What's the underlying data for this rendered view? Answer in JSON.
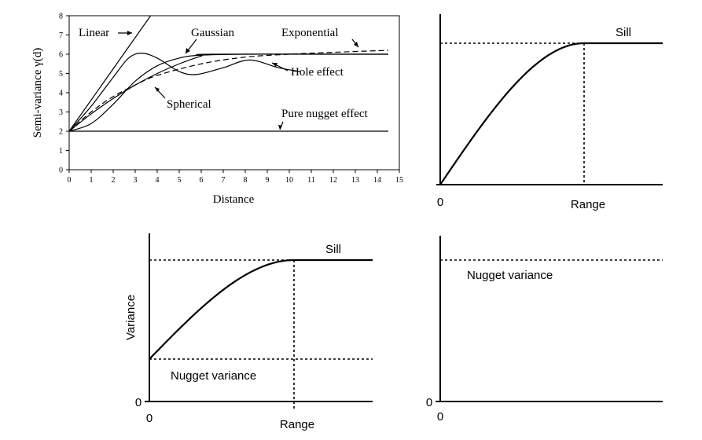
{
  "chart_data": [
    {
      "type": "line",
      "title": "",
      "xlabel": "Distance",
      "ylabel": "Semi-variance γ(d)",
      "xlim": [
        0,
        15
      ],
      "ylim": [
        0,
        8
      ],
      "xticks": [
        "0",
        "1",
        "2",
        "3",
        "4",
        "5",
        "6",
        "7",
        "8",
        "9",
        "10",
        "11",
        "12",
        "13",
        "14",
        "15"
      ],
      "yticks": [
        "0",
        "1",
        "2",
        "3",
        "4",
        "5",
        "6",
        "7",
        "8"
      ],
      "series": [
        {
          "name": "Linear",
          "x": [
            0,
            3.7
          ],
          "y": [
            2,
            8
          ]
        },
        {
          "name": "Gaussian",
          "x": [
            0,
            1,
            2,
            3,
            4,
            5,
            6,
            8,
            10,
            14.5
          ],
          "y": [
            2,
            2.4,
            3.4,
            4.6,
            5.4,
            5.8,
            5.95,
            6.0,
            6.0,
            6.0
          ]
        },
        {
          "name": "Exponential",
          "x": [
            0,
            1,
            2,
            3,
            4,
            6,
            8,
            10,
            12,
            14.5
          ],
          "y": [
            2,
            3.0,
            3.8,
            4.4,
            4.9,
            5.5,
            5.85,
            6.0,
            6.1,
            6.2
          ]
        },
        {
          "name": "Spherical",
          "x": [
            0,
            1,
            2,
            3,
            4,
            5,
            6,
            6.5,
            14.5
          ],
          "y": [
            2,
            2.9,
            3.7,
            4.4,
            5.0,
            5.5,
            5.9,
            6.0,
            6.0
          ]
        },
        {
          "name": "Hole effect",
          "x": [
            0,
            1,
            2,
            2.7,
            3.3,
            4,
            5,
            5.8,
            7,
            8.2,
            9.5,
            10.5
          ],
          "y": [
            2,
            3.3,
            4.8,
            5.8,
            6.05,
            5.8,
            5.1,
            4.95,
            5.3,
            5.7,
            5.3,
            5.1
          ]
        },
        {
          "name": "Pure nugget effect",
          "x": [
            0,
            14.5
          ],
          "y": [
            2,
            2
          ]
        }
      ],
      "annotations": [
        "Linear",
        "Gaussian",
        "Exponential",
        "Hole effect",
        "Spherical",
        "Pure nugget effect"
      ]
    },
    {
      "type": "line",
      "xlabel": "Range",
      "x_origin_label": "0",
      "curve_label": "Sill",
      "shape": "sill-range",
      "nugget": 0,
      "sill": 1,
      "range": 0.65
    },
    {
      "type": "line",
      "xlabel": "Range",
      "ylabel": "Variance",
      "x_origin_label": "0",
      "y_origin_label": "0",
      "curve_label": "Sill",
      "nugget_label": "Nugget variance",
      "shape": "nugget-sill-range",
      "nugget": 0.3,
      "sill": 1,
      "range": 0.65
    },
    {
      "type": "line",
      "x_origin_label": "0",
      "y_origin_label": "0",
      "nugget_label": "Nugget variance",
      "shape": "pure-nugget",
      "nugget": 1
    }
  ]
}
